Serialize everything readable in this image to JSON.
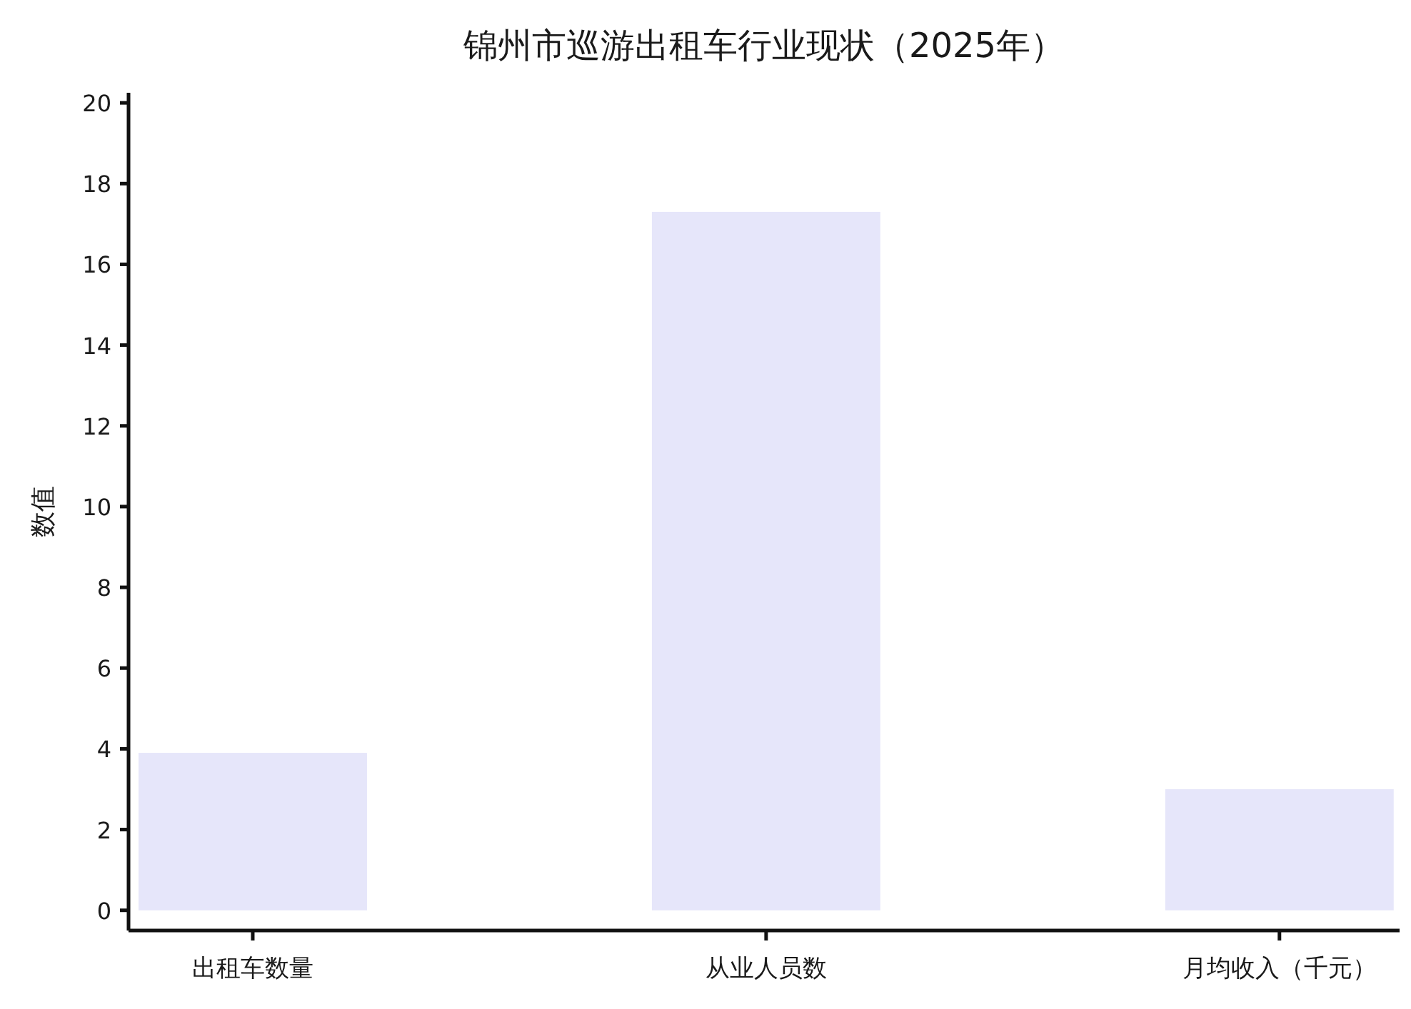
{
  "chart_data": {
    "type": "bar",
    "title": "锦州市巡游出租车行业现状（2025年）",
    "ylabel": "数值",
    "categories": [
      "出租车数量",
      "从业人员数",
      "月均收入（千元）"
    ],
    "values": [
      3.9,
      17.3,
      3.0
    ],
    "color": "#e6e6fa",
    "ylim": [
      -0.5,
      20.25
    ],
    "yticks": [
      0,
      2,
      4,
      6,
      8,
      10,
      12,
      14,
      16,
      18,
      20
    ],
    "grid": false
  }
}
